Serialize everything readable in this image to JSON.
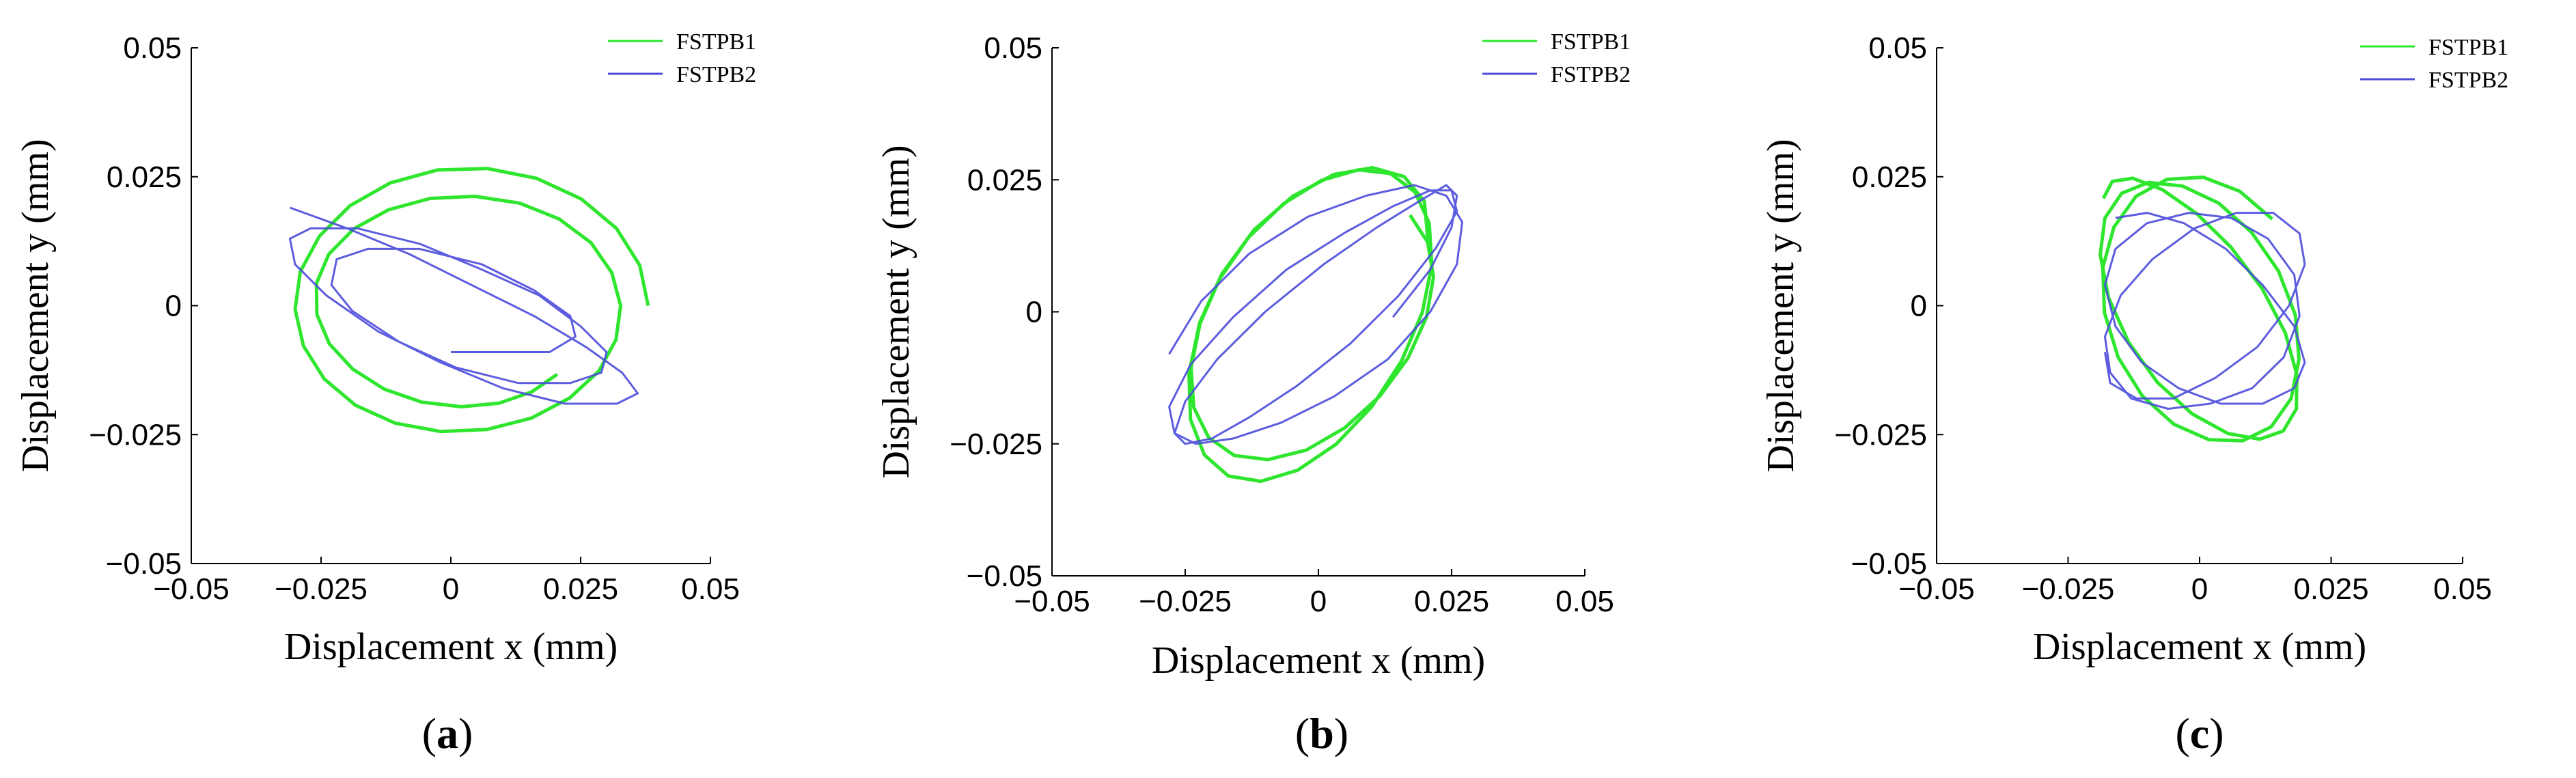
{
  "colors": {
    "fstpb1": "#2ee62e",
    "fstpb2": "#4b4bdc",
    "axis": "#000000"
  },
  "chart_data": [
    {
      "type": "line",
      "panel_label": "(a)",
      "panel_letter": "a",
      "xlabel": "Displacement x (mm)",
      "ylabel": "Displacement y (mm)",
      "xlim": [
        -0.05,
        0.05
      ],
      "ylim": [
        -0.05,
        0.05
      ],
      "xticks": [
        -0.05,
        -0.025,
        0,
        0.025,
        0.05
      ],
      "yticks": [
        -0.05,
        -0.025,
        0,
        0.025,
        0.05
      ],
      "xtick_labels": [
        "−0.05",
        "−0.025",
        "0",
        "0.025",
        "0.05"
      ],
      "ytick_labels": [
        "−0.05",
        "−0.025",
        "0",
        "0.025",
        "0.05"
      ],
      "legend": {
        "placement": "top-right",
        "entries": [
          "FSTPB1",
          "FSTPB2"
        ]
      },
      "series": [
        {
          "name": "FSTPB1",
          "x": [
            0.038,
            0.0364,
            0.0319,
            0.0251,
            0.0165,
            0.007,
            -0.0026,
            -0.0117,
            -0.0194,
            -0.0253,
            -0.029,
            -0.03,
            -0.0284,
            -0.0244,
            -0.0184,
            -0.0107,
            -0.002,
            0.007,
            0.0155,
            0.0229,
            0.0285,
            0.0318,
            0.0327,
            0.031,
            0.027,
            0.0209,
            0.0132,
            0.0046,
            -0.004,
            -0.012,
            -0.0187,
            -0.0235,
            -0.0259,
            -0.0258,
            -0.0234,
            -0.0189,
            -0.0128,
            -0.0056,
            0.002,
            0.0093,
            0.0156,
            0.0205
          ],
          "y": [
            0.0,
            0.0078,
            0.015,
            0.0207,
            0.0247,
            0.0266,
            0.0263,
            0.0238,
            0.0194,
            0.0135,
            0.0066,
            -0.0007,
            -0.0078,
            -0.0142,
            -0.0193,
            -0.0228,
            -0.0244,
            -0.024,
            -0.0218,
            -0.0179,
            -0.0127,
            -0.0066,
            0.0,
            0.0064,
            0.0122,
            0.0168,
            0.0199,
            0.0212,
            0.0208,
            0.0186,
            0.0149,
            0.01,
            0.0043,
            -0.0017,
            -0.0074,
            -0.0123,
            -0.0162,
            -0.0187,
            -0.0196,
            -0.0189,
            -0.0167,
            -0.0133
          ]
        },
        {
          "name": "FSTPB2",
          "x": [
            -0.031,
            -0.02,
            -0.008,
            0.004,
            0.016,
            0.026,
            0.033,
            0.036,
            0.032,
            0.022,
            0.01,
            -0.002,
            -0.014,
            -0.024,
            -0.03,
            -0.031,
            -0.027,
            -0.018,
            -0.006,
            0.006,
            0.017,
            0.025,
            0.03,
            0.029,
            0.023,
            0.013,
            0.001,
            -0.01,
            -0.019,
            -0.023,
            -0.022,
            -0.016,
            -0.006,
            0.006,
            0.016,
            0.023,
            0.024,
            0.019,
            0.01,
            0.0
          ],
          "y": [
            0.019,
            0.015,
            0.01,
            0.004,
            -0.002,
            -0.008,
            -0.013,
            -0.017,
            -0.019,
            -0.019,
            -0.016,
            -0.011,
            -0.005,
            0.002,
            0.008,
            0.013,
            0.015,
            0.015,
            0.012,
            0.007,
            0.002,
            -0.004,
            -0.009,
            -0.013,
            -0.015,
            -0.015,
            -0.012,
            -0.007,
            -0.001,
            0.004,
            0.009,
            0.011,
            0.011,
            0.008,
            0.003,
            -0.002,
            -0.006,
            -0.009,
            -0.009,
            -0.009
          ]
        }
      ]
    },
    {
      "type": "line",
      "panel_label": "(b)",
      "panel_letter": "b",
      "xlabel": "Displacement x (mm)",
      "ylabel": "Displacement y (mm)",
      "xlim": [
        -0.05,
        0.05
      ],
      "ylim": [
        -0.05,
        0.05
      ],
      "xticks": [
        -0.05,
        -0.025,
        0,
        0.025,
        0.05
      ],
      "yticks": [
        -0.05,
        -0.025,
        0,
        0.025,
        0.05
      ],
      "xtick_labels": [
        "−0.05",
        "−0.025",
        "0",
        "0.025",
        "0.05"
      ],
      "ytick_labels": [
        "−0.05",
        "−0.025",
        "0",
        "0.025",
        "0.05"
      ],
      "legend": {
        "placement": "top-right",
        "entries": [
          "FSTPB1",
          "FSTPB2"
        ]
      },
      "series": [
        {
          "name": "FSTPB1",
          "x": [
            0.0206,
            0.0199,
            0.0161,
            0.0102,
            0.0029,
            -0.0048,
            -0.0121,
            -0.0181,
            -0.0223,
            -0.0243,
            -0.024,
            -0.0214,
            -0.0169,
            -0.0108,
            -0.0039,
            0.0033,
            0.01,
            0.0156,
            0.0195,
            0.0213,
            0.0208,
            0.0181,
            0.0135,
            0.0075,
            0.0006,
            -0.0065,
            -0.0131,
            -0.0185,
            -0.0222,
            -0.0239,
            -0.0234,
            -0.0206,
            -0.0158,
            -0.0095,
            -0.0023,
            0.0049,
            0.0115,
            0.0168,
            0.0203,
            0.0216,
            0.0205,
            0.0172
          ],
          "y": [
            0.0131,
            0.0209,
            0.0256,
            0.0273,
            0.026,
            0.0219,
            0.0155,
            0.0072,
            -0.0021,
            -0.0117,
            -0.0204,
            -0.0271,
            -0.0311,
            -0.0321,
            -0.03,
            -0.0251,
            -0.018,
            -0.0093,
            -0.0001,
            0.0089,
            0.0168,
            0.0227,
            0.0262,
            0.0269,
            0.0249,
            0.0205,
            0.0141,
            0.0063,
            -0.0022,
            -0.0106,
            -0.0181,
            -0.0238,
            -0.0272,
            -0.028,
            -0.0262,
            -0.022,
            -0.016,
            -0.0088,
            -0.001,
            0.0066,
            0.0132,
            0.0183
          ]
        },
        {
          "name": "FSTPB2",
          "x": [
            -0.028,
            -0.022,
            -0.013,
            -0.002,
            0.009,
            0.018,
            0.024,
            0.027,
            0.026,
            0.021,
            0.013,
            0.003,
            -0.007,
            -0.016,
            -0.023,
            -0.027,
            -0.028,
            -0.024,
            -0.016,
            -0.006,
            0.005,
            0.014,
            0.021,
            0.025,
            0.026,
            0.022,
            0.015,
            0.006,
            -0.004,
            -0.013,
            -0.02,
            -0.025,
            -0.027,
            -0.025,
            -0.019,
            -0.01,
            0.001,
            0.011,
            0.019,
            0.024,
            0.026,
            0.025,
            0.021,
            0.014
          ],
          "y": [
            -0.008,
            0.002,
            0.011,
            0.018,
            0.022,
            0.024,
            0.022,
            0.017,
            0.009,
            0.0,
            -0.009,
            -0.016,
            -0.021,
            -0.024,
            -0.025,
            -0.023,
            -0.018,
            -0.01,
            -0.001,
            0.008,
            0.015,
            0.02,
            0.023,
            0.023,
            0.019,
            0.012,
            0.003,
            -0.006,
            -0.014,
            -0.02,
            -0.024,
            -0.025,
            -0.023,
            -0.017,
            -0.009,
            0.0,
            0.009,
            0.016,
            0.021,
            0.024,
            0.022,
            0.016,
            0.008,
            -0.001
          ]
        }
      ]
    },
    {
      "type": "line",
      "panel_label": "(c)",
      "panel_letter": "c",
      "xlabel": "Displacement x (mm)",
      "ylabel": "Displacement y (mm)",
      "xlim": [
        -0.05,
        0.05
      ],
      "ylim": [
        -0.05,
        0.05
      ],
      "xticks": [
        -0.05,
        -0.025,
        0,
        0.025,
        0.05
      ],
      "yticks": [
        -0.05,
        -0.025,
        0,
        0.025,
        0.05
      ],
      "xtick_labels": [
        "−0.05",
        "−0.025",
        "0",
        "0.025",
        "0.05"
      ],
      "ytick_labels": [
        "−0.05",
        "−0.025",
        "0",
        "0.025",
        "0.05"
      ],
      "legend": {
        "placement": "top-right",
        "entries": [
          "FSTPB1",
          "FSTPB2"
        ]
      },
      "series": [
        {
          "name": "FSTPB1",
          "x": [
            0.0138,
            0.0076,
            0.0007,
            -0.0062,
            -0.0121,
            -0.0163,
            -0.0184,
            -0.0181,
            -0.0155,
            -0.0109,
            -0.0049,
            0.0018,
            0.0082,
            0.0136,
            0.0174,
            0.0189,
            0.0182,
            0.015,
            0.0099,
            0.0036,
            -0.0033,
            -0.0097,
            -0.0148,
            -0.018,
            -0.0189,
            -0.0173,
            -0.0135,
            -0.008,
            -0.0014,
            0.0054,
            0.0114,
            0.0159,
            0.0184,
            0.0185,
            0.0163,
            0.0119,
            0.006,
            -0.0006,
            -0.0071,
            -0.0127,
            -0.0166,
            -0.0183
          ],
          "y": [
            0.0168,
            0.0222,
            0.0249,
            0.0245,
            0.0212,
            0.0152,
            0.0074,
            -0.0013,
            -0.01,
            -0.0175,
            -0.023,
            -0.026,
            -0.0262,
            -0.0235,
            -0.018,
            -0.0104,
            -0.0018,
            0.0067,
            0.0142,
            0.0199,
            0.0232,
            0.0239,
            0.0218,
            0.017,
            0.0099,
            0.0015,
            -0.0071,
            -0.0149,
            -0.021,
            -0.0248,
            -0.0259,
            -0.0243,
            -0.02,
            -0.0134,
            -0.0053,
            0.0033,
            0.0113,
            0.0179,
            0.0225,
            0.0247,
            0.0241,
            0.0208
          ]
        },
        {
          "name": "FSTPB2",
          "x": [
            -0.016,
            -0.01,
            -0.003,
            0.005,
            0.012,
            0.018,
            0.02,
            0.018,
            0.012,
            0.004,
            -0.004,
            -0.011,
            -0.016,
            -0.018,
            -0.016,
            -0.01,
            -0.002,
            0.006,
            0.013,
            0.018,
            0.019,
            0.016,
            0.01,
            0.002,
            -0.006,
            -0.013,
            -0.017,
            -0.018,
            -0.015,
            -0.009,
            -0.001,
            0.007,
            0.014,
            0.019,
            0.02,
            0.017,
            0.011,
            0.003,
            -0.005,
            -0.012,
            -0.017,
            -0.018
          ],
          "y": [
            0.017,
            0.018,
            0.016,
            0.011,
            0.004,
            -0.004,
            -0.011,
            -0.016,
            -0.019,
            -0.019,
            -0.016,
            -0.011,
            -0.004,
            0.004,
            0.011,
            0.016,
            0.018,
            0.017,
            0.013,
            0.006,
            -0.002,
            -0.01,
            -0.016,
            -0.019,
            -0.02,
            -0.018,
            -0.013,
            -0.006,
            0.002,
            0.009,
            0.015,
            0.018,
            0.018,
            0.014,
            0.008,
            0.0,
            -0.008,
            -0.014,
            -0.018,
            -0.018,
            -0.015,
            -0.009
          ]
        }
      ]
    }
  ]
}
